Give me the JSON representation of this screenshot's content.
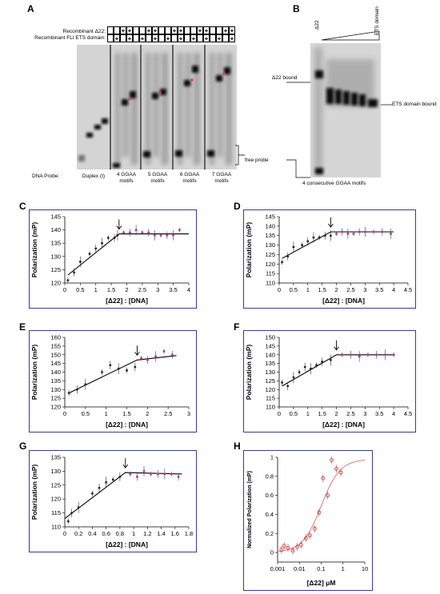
{
  "panels": {
    "A": "A",
    "B": "B",
    "C": "C",
    "D": "D",
    "E": "E",
    "F": "F",
    "G": "G",
    "H": "H"
  },
  "panel_a": {
    "row1_label": "Recombinant Δ22:",
    "row2_label": "Recombinant FLI ETS domain:",
    "row1_signs": [
      "",
      "",
      "+",
      "+",
      "",
      "",
      "+",
      "+",
      "",
      "",
      "+",
      "+",
      "",
      "",
      "+",
      "+",
      "",
      "",
      "+",
      "+"
    ],
    "row2_signs": [
      "",
      "+",
      "",
      "+",
      "",
      "+",
      "",
      "+",
      "",
      "+",
      "",
      "+",
      "",
      "+",
      "",
      "+",
      "",
      "+",
      "",
      "+"
    ],
    "probe_label": "DNA Probe:",
    "lanes": [
      "Duplex (I)",
      "4 GGAA motifs",
      "5 GGAA motifs",
      "6 GGAA motifs",
      "7 GGAA motifs"
    ],
    "free_probe": "free probe"
  },
  "panel_b": {
    "d22": "Δ22",
    "ets": "ETS domain",
    "d22_bound": "Δ22 bound",
    "ets_bound": "ETS domain bound",
    "caption": "4 consecutive GGAA motifs"
  },
  "chart_data": [
    {
      "id": "C",
      "type": "scatter",
      "xlabel": "[Δ22] : [DNA]",
      "ylabel": "Polarization (mP)",
      "xlim": [
        0,
        4
      ],
      "ylim": [
        120,
        145
      ],
      "xticks": [
        "0",
        "0.5",
        "1",
        "1.5",
        "2",
        "2.5",
        "3",
        "3.5",
        "4"
      ],
      "yticks": [
        "120",
        "125",
        "130",
        "135",
        "140",
        "145"
      ],
      "points_a": [
        [
          0.1,
          121
        ],
        [
          0.3,
          124
        ],
        [
          0.5,
          128
        ],
        [
          0.8,
          131
        ],
        [
          1.0,
          133
        ],
        [
          1.2,
          135
        ],
        [
          1.4,
          137
        ],
        [
          1.6,
          137
        ],
        [
          1.7,
          138
        ]
      ],
      "points_b": [
        [
          1.9,
          139
        ],
        [
          2.1,
          139
        ],
        [
          2.3,
          140
        ],
        [
          2.5,
          139
        ],
        [
          2.7,
          139
        ],
        [
          2.9,
          138
        ],
        [
          3.1,
          138
        ],
        [
          3.3,
          138
        ],
        [
          3.5,
          138
        ],
        [
          3.7,
          140
        ]
      ],
      "fit": [
        [
          0.1,
          123
        ],
        [
          1.75,
          138.5
        ],
        [
          4,
          138.5
        ]
      ],
      "arrow_x": 1.75
    },
    {
      "id": "D",
      "type": "scatter",
      "xlabel": "[Δ22] : [DNA]",
      "ylabel": "Polarization (mP)",
      "xlim": [
        0,
        4.5
      ],
      "ylim": [
        110,
        145
      ],
      "xticks": [
        "0",
        "0.5",
        "1",
        "1.5",
        "2",
        "2.5",
        "3",
        "3.5",
        "4",
        "4.5"
      ],
      "yticks": [
        "110",
        "115",
        "120",
        "125",
        "130",
        "135",
        "140",
        "145"
      ],
      "points_a": [
        [
          0.1,
          121
        ],
        [
          0.3,
          124
        ],
        [
          0.5,
          129
        ],
        [
          0.8,
          130
        ],
        [
          1.0,
          132
        ],
        [
          1.2,
          134
        ],
        [
          1.4,
          134
        ],
        [
          1.6,
          135
        ],
        [
          1.8,
          135
        ]
      ],
      "points_b": [
        [
          2.0,
          136
        ],
        [
          2.2,
          137
        ],
        [
          2.4,
          136
        ],
        [
          2.6,
          136
        ],
        [
          2.8,
          137
        ],
        [
          3.0,
          137
        ],
        [
          3.3,
          137
        ],
        [
          3.6,
          137
        ],
        [
          3.9,
          136
        ]
      ],
      "fit": [
        [
          0.1,
          123
        ],
        [
          1.8,
          137
        ],
        [
          4,
          137
        ]
      ],
      "arrow_x": 1.8
    },
    {
      "id": "E",
      "type": "scatter",
      "xlabel": "[Δ22] : [DNA]",
      "ylabel": "Polarization (mP)",
      "xlim": [
        0,
        3
      ],
      "ylim": [
        120,
        160
      ],
      "xticks": [
        "0",
        "0.5",
        "1",
        "1.5",
        "2",
        "2.5",
        "3"
      ],
      "yticks": [
        "120",
        "125",
        "130",
        "135",
        "140",
        "145",
        "150",
        "155",
        "160"
      ],
      "points_a": [
        [
          0.1,
          128
        ],
        [
          0.3,
          130
        ],
        [
          0.5,
          133
        ],
        [
          0.9,
          140
        ],
        [
          1.1,
          144
        ],
        [
          1.3,
          142
        ],
        [
          1.5,
          141
        ],
        [
          1.7,
          143
        ]
      ],
      "points_b": [
        [
          1.85,
          148
        ],
        [
          2.0,
          147
        ],
        [
          2.2,
          149
        ],
        [
          2.4,
          152
        ],
        [
          2.6,
          150
        ]
      ],
      "fit": [
        [
          0.1,
          128
        ],
        [
          1.75,
          147
        ],
        [
          2.7,
          149.5
        ]
      ],
      "arrow_x": 1.75
    },
    {
      "id": "F",
      "type": "scatter",
      "xlabel": "[Δ22] : [DNA]",
      "ylabel": "Polarization (mP)",
      "xlim": [
        0,
        4.5
      ],
      "ylim": [
        110,
        150
      ],
      "xticks": [
        "0",
        "0.5",
        "1",
        "1.5",
        "2",
        "2.5",
        "3",
        "3.5",
        "4",
        "4.5"
      ],
      "yticks": [
        "110",
        "115",
        "120",
        "125",
        "130",
        "135",
        "140",
        "145",
        "150"
      ],
      "points_a": [
        [
          0.1,
          124
        ],
        [
          0.3,
          122
        ],
        [
          0.5,
          127
        ],
        [
          0.7,
          130
        ],
        [
          0.9,
          133
        ],
        [
          1.1,
          132
        ],
        [
          1.3,
          134
        ],
        [
          1.5,
          136
        ],
        [
          1.8,
          137
        ]
      ],
      "points_b": [
        [
          2.2,
          140
        ],
        [
          2.5,
          140
        ],
        [
          2.8,
          139
        ],
        [
          3.1,
          140
        ],
        [
          3.4,
          140
        ],
        [
          3.7,
          140
        ],
        [
          4.0,
          140
        ]
      ],
      "fit": [
        [
          0.1,
          122
        ],
        [
          2.0,
          140
        ],
        [
          4,
          140
        ]
      ],
      "arrow_x": 2.0
    },
    {
      "id": "G",
      "type": "scatter",
      "xlabel": "[Δ22] : [DNA]",
      "ylabel": "Polarization (mP)",
      "xlim": [
        0,
        1.8
      ],
      "ylim": [
        110,
        135
      ],
      "xticks": [
        "0",
        "0.2",
        "0.4",
        "0.6",
        "0.8",
        "1",
        "1.2",
        "1.4",
        "1.6",
        "1.8"
      ],
      "yticks": [
        "110",
        "115",
        "120",
        "125",
        "130",
        "135"
      ],
      "points_a": [
        [
          0.05,
          112
        ],
        [
          0.1,
          115
        ],
        [
          0.2,
          117
        ],
        [
          0.4,
          122
        ],
        [
          0.5,
          124
        ],
        [
          0.6,
          126
        ],
        [
          0.7,
          127
        ],
        [
          0.8,
          128
        ]
      ],
      "points_b": [
        [
          0.95,
          129
        ],
        [
          1.05,
          128
        ],
        [
          1.15,
          130
        ],
        [
          1.25,
          129
        ],
        [
          1.35,
          129
        ],
        [
          1.45,
          129
        ],
        [
          1.55,
          129
        ],
        [
          1.65,
          128
        ]
      ],
      "fit": [
        [
          0.0,
          113
        ],
        [
          0.88,
          129.5
        ],
        [
          1.7,
          129
        ]
      ],
      "arrow_x": 0.88
    },
    {
      "id": "H",
      "type": "scatter",
      "xlabel": "[Δ22] μM",
      "ylabel": "Normalized Polarization (mP)",
      "xlim": [
        0.001,
        10
      ],
      "ylim": [
        -0.1,
        1.0
      ],
      "log_x": true,
      "xticks": [
        "0.001",
        "0.01",
        "0.1",
        "1",
        "10"
      ],
      "yticks": [
        "0",
        "0.2",
        "0.4",
        "0.6",
        "0.8",
        "1"
      ],
      "points": [
        [
          0.0015,
          0.03
        ],
        [
          0.002,
          0.07
        ],
        [
          0.003,
          0.05
        ],
        [
          0.005,
          0.02
        ],
        [
          0.008,
          0.06
        ],
        [
          0.012,
          0.08
        ],
        [
          0.02,
          0.15
        ],
        [
          0.03,
          0.18
        ],
        [
          0.05,
          0.25
        ],
        [
          0.08,
          0.42
        ],
        [
          0.12,
          0.78
        ],
        [
          0.2,
          0.6
        ],
        [
          0.3,
          0.97
        ],
        [
          0.5,
          0.88
        ],
        [
          0.8,
          0.84
        ]
      ],
      "curve_kd": 0.1
    }
  ]
}
